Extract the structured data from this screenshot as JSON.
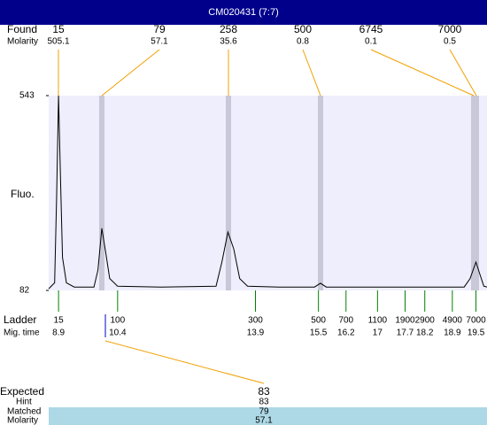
{
  "title": "CM020431 (7:7)",
  "found": {
    "label": "Found",
    "molarity_label": "Molarity",
    "sizes": [
      15,
      79,
      258,
      500,
      6745,
      7000
    ],
    "molarity": [
      505.1,
      57.1,
      35.6,
      0.8,
      0.1,
      0.5
    ]
  },
  "chart_data": {
    "type": "line",
    "ylabel": "Fluo.",
    "x": [
      8.65,
      8.8,
      8.85,
      8.9,
      8.95,
      9.0,
      9.1,
      9.3,
      9.8,
      9.9,
      10.0,
      10.1,
      10.2,
      10.4,
      11.5,
      12.9,
      13.05,
      13.2,
      13.35,
      13.5,
      13.7,
      14.5,
      15.4,
      15.55,
      15.7,
      17,
      19.2,
      19.35,
      19.5,
      19.6,
      19.7,
      19.78
    ],
    "values": [
      86,
      100,
      300,
      543,
      350,
      160,
      100,
      90,
      90,
      130,
      229,
      170,
      110,
      92,
      90,
      92,
      150,
      220,
      180,
      110,
      92,
      90,
      90,
      99,
      90,
      90,
      90,
      110,
      149,
      120,
      92,
      90
    ],
    "color": "#000000",
    "xlim": [
      8.65,
      19.78
    ],
    "ylim": [
      82,
      543
    ],
    "yticks": [
      82,
      543
    ]
  },
  "ladder": {
    "label": "Ladder",
    "time_label": "Mig. time",
    "sizes": [
      15,
      100,
      300,
      500,
      700,
      1100,
      1900,
      2900,
      4900,
      7000
    ],
    "times": [
      8.9,
      10.4,
      13.9,
      15.5,
      16.2,
      17,
      17.7,
      18.2,
      18.9,
      19.5
    ]
  },
  "expected": {
    "label": "Expected",
    "value": 83,
    "hint_label": "Hint",
    "hint": 83,
    "matched_label": "Matched",
    "matched": 79,
    "molarity_label": "Molarity",
    "molarity": 57.1
  }
}
